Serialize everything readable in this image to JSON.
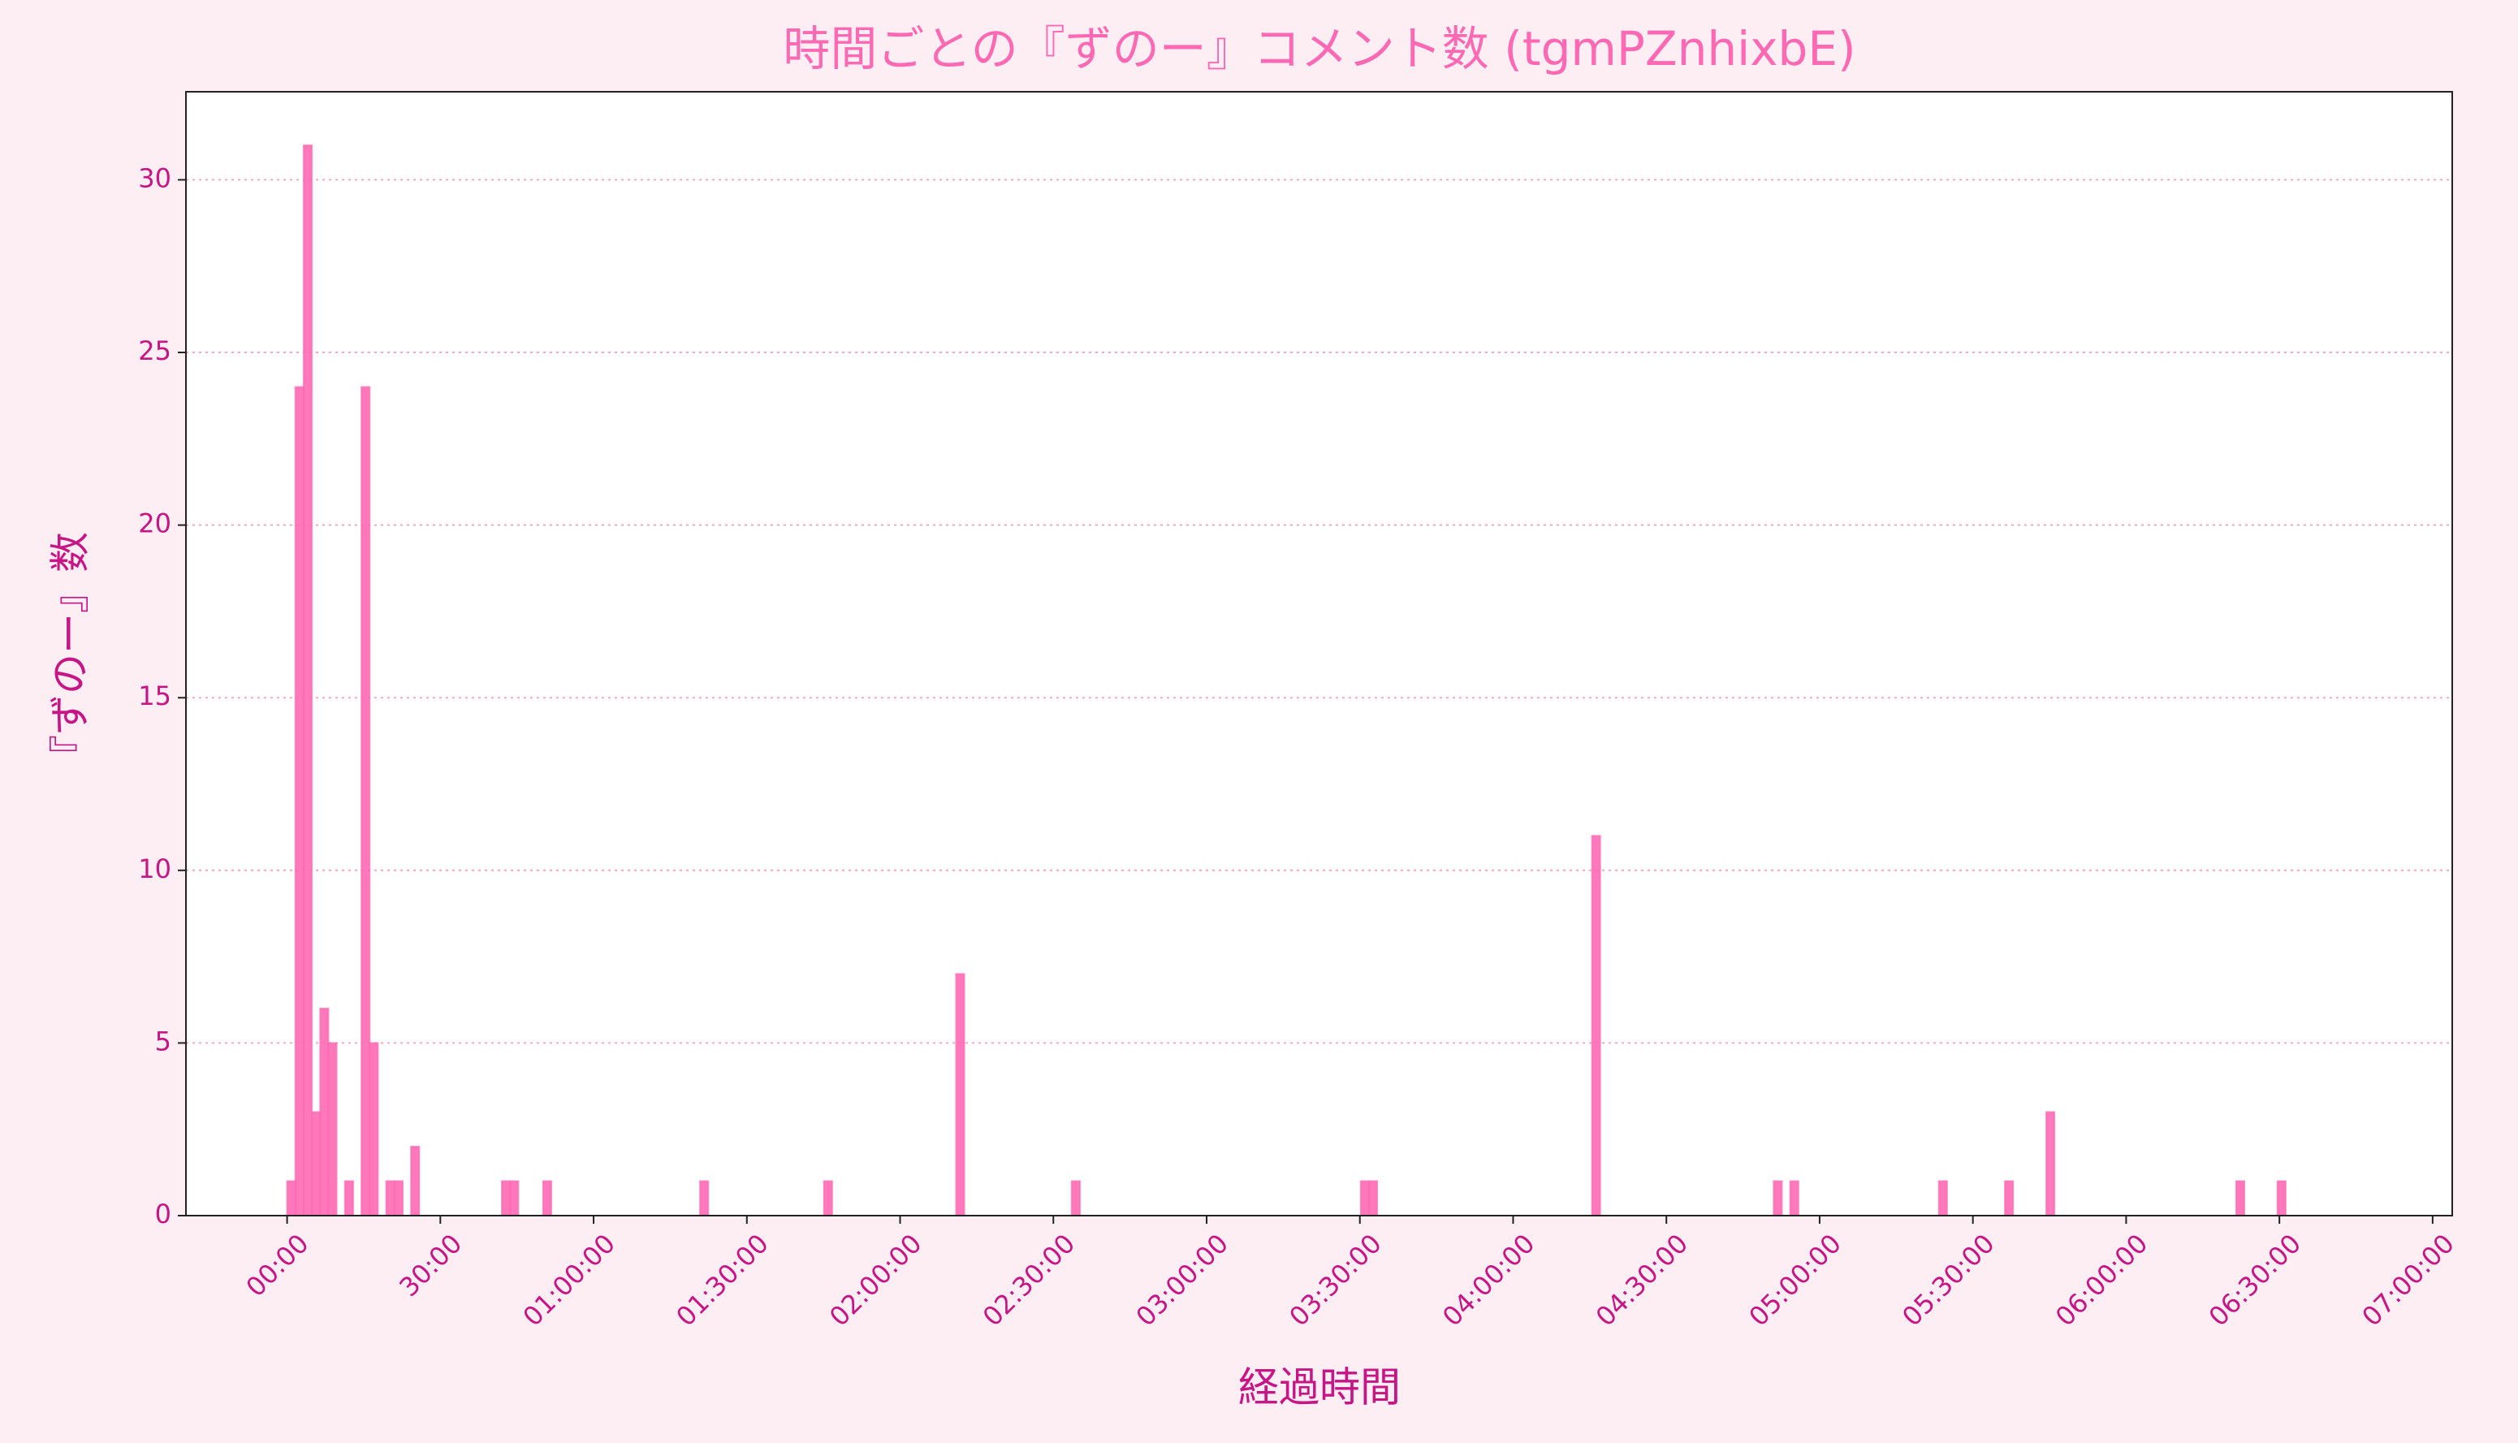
{
  "chart_data": {
    "type": "histogram",
    "title": "時間ごとの『ずのー』コメント数 (tgmPZnhixbE)",
    "x_label": "経過時間",
    "y_label": "『ずのー』数",
    "color": "#ff69b4",
    "bins": [
      0,
      97,
      194,
      291,
      388,
      485,
      582,
      679,
      776,
      873,
      970,
      1067,
      1164,
      1261,
      1358,
      1455,
      1552,
      1649,
      1746,
      1843,
      1940,
      2037,
      2134,
      2231,
      2328,
      2425,
      2522,
      2619,
      2716,
      2813,
      2910,
      3007,
      3104,
      3201,
      3298,
      3395,
      3492,
      3589,
      3686,
      3783,
      3880,
      3977,
      4074,
      4171,
      4268,
      4365,
      4462,
      4559,
      4656,
      4753,
      4850,
      4947,
      5044,
      5141,
      5238,
      5335,
      5432,
      5529,
      5626,
      5723,
      5820,
      5917,
      6014,
      6111,
      6208,
      6305,
      6402,
      6499,
      6596,
      6693,
      6790,
      6887,
      6984,
      7081,
      7178,
      7275,
      7372,
      7469,
      7566,
      7663,
      7760,
      7857,
      7954,
      8051,
      8148,
      8245,
      8342,
      8439,
      8536,
      8633,
      8730,
      8827,
      8924,
      9021,
      9118,
      9215,
      9312,
      9409,
      9506,
      9603,
      9700,
      9797,
      9894,
      9991,
      10088,
      10185,
      10282,
      10379,
      10476,
      10573,
      10670,
      10767,
      10864,
      10961,
      11058,
      11155,
      11252,
      11349,
      11446,
      11543,
      11640,
      11737,
      11834,
      11931,
      12028,
      12125,
      12222,
      12319,
      12416,
      12513,
      12610,
      12707,
      12804,
      12901,
      12998,
      13095,
      13192,
      13289,
      13386,
      13483,
      13580,
      13677,
      13774,
      13871,
      13968,
      14065,
      14162,
      14259,
      14356,
      14453,
      14550,
      14647,
      14744,
      14841,
      14938,
      15035,
      15132,
      15229,
      15326,
      15423,
      15520,
      15617,
      15714,
      15811,
      15908,
      16005,
      16102,
      16199,
      16296,
      16393,
      16490,
      16587,
      16684,
      16781,
      16878,
      16975,
      17072,
      17169,
      17266,
      17363,
      17460,
      17557,
      17654,
      17751,
      17848,
      17945,
      18042,
      18139,
      18236,
      18333,
      18430,
      18527,
      18624,
      18721,
      18818,
      18915,
      19012,
      19109,
      19206,
      19303,
      19400,
      19497,
      19594,
      19691,
      19788,
      19885,
      19982,
      20079,
      20176,
      20273,
      20370,
      20467,
      20564,
      20661,
      20758,
      20855,
      20952,
      21049,
      21146,
      21243,
      21340,
      21437,
      21534,
      21631,
      21728,
      21825,
      21922,
      22019,
      22116,
      22213,
      22310,
      22407,
      22504,
      22601,
      22698,
      22795,
      22892,
      22989,
      23086,
      23183,
      23280,
      23377,
      23474,
      23571,
      23668,
      23765,
      23862,
      23959,
      24056,
      24153,
      24250
    ],
    "values": [
      1,
      24,
      31,
      3,
      6,
      5,
      0,
      1,
      0,
      24,
      5,
      0,
      1,
      1,
      0,
      2,
      0,
      0,
      0,
      0,
      0,
      0,
      0,
      0,
      0,
      0,
      1,
      1,
      0,
      0,
      0,
      1,
      0,
      0,
      0,
      0,
      0,
      0,
      0,
      0,
      0,
      0,
      0,
      0,
      0,
      0,
      0,
      0,
      0,
      0,
      1,
      0,
      0,
      0,
      0,
      0,
      0,
      0,
      0,
      0,
      0,
      0,
      0,
      0,
      0,
      1,
      0,
      0,
      0,
      0,
      0,
      0,
      0,
      0,
      0,
      0,
      0,
      0,
      0,
      0,
      0,
      7,
      0,
      0,
      0,
      0,
      0,
      0,
      0,
      0,
      0,
      0,
      0,
      0,
      0,
      1,
      0,
      0,
      0,
      0,
      0,
      0,
      0,
      0,
      0,
      0,
      0,
      0,
      0,
      0,
      0,
      0,
      0,
      0,
      0,
      0,
      0,
      0,
      0,
      0,
      0,
      0,
      0,
      0,
      0,
      0,
      0,
      0,
      0,
      0,
      1,
      1,
      0,
      0,
      0,
      0,
      0,
      0,
      0,
      0,
      0,
      0,
      0,
      0,
      0,
      0,
      0,
      0,
      0,
      0,
      0,
      0,
      0,
      0,
      0,
      0,
      0,
      0,
      11,
      0,
      0,
      0,
      0,
      0,
      0,
      0,
      0,
      0,
      0,
      0,
      0,
      0,
      0,
      0,
      0,
      0,
      0,
      0,
      0,
      0,
      1,
      0,
      1,
      0,
      0,
      0,
      0,
      0,
      0,
      0,
      0,
      0,
      0,
      0,
      0,
      0,
      0,
      0,
      0,
      0,
      1,
      0,
      0,
      0,
      0,
      0,
      0,
      0,
      1,
      0,
      0,
      0,
      0,
      3,
      0,
      0,
      0,
      0,
      0,
      0,
      0,
      0,
      0,
      0,
      0,
      0,
      0,
      0,
      0,
      0,
      0,
      0,
      0,
      0,
      0,
      0,
      1,
      0,
      0,
      0,
      0,
      1,
      0,
      0,
      0,
      0,
      0,
      0,
      0,
      0
    ],
    "xlim": [
      -1188,
      25430
    ],
    "xticks": [
      {
        "value": 0,
        "label": "00:00"
      },
      {
        "value": 1800,
        "label": "30:00"
      },
      {
        "value": 3600,
        "label": "01:00:00"
      },
      {
        "value": 5400,
        "label": "01:30:00"
      },
      {
        "value": 7200,
        "label": "02:00:00"
      },
      {
        "value": 9000,
        "label": "02:30:00"
      },
      {
        "value": 10800,
        "label": "03:00:00"
      },
      {
        "value": 12600,
        "label": "03:30:00"
      },
      {
        "value": 14400,
        "label": "04:00:00"
      },
      {
        "value": 16200,
        "label": "04:30:00"
      },
      {
        "value": 18000,
        "label": "05:00:00"
      },
      {
        "value": 19800,
        "label": "05:30:00"
      },
      {
        "value": 21600,
        "label": "06:00:00"
      },
      {
        "value": 23400,
        "label": "06:30:00"
      },
      {
        "value": 25200,
        "label": "07:00:00"
      }
    ],
    "ylim": [
      0,
      32.55
    ],
    "yticks": [
      0,
      5,
      10,
      15,
      20,
      25,
      30
    ],
    "grid": true
  }
}
